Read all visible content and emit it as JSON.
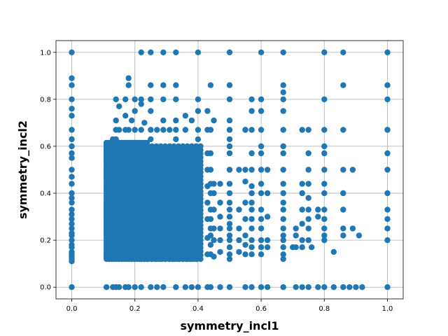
{
  "chart_data": {
    "type": "scatter",
    "title": "",
    "xlabel": "symmetry_incl1",
    "ylabel": "symmetry_incl2",
    "xlim": [
      -0.05,
      1.05
    ],
    "ylim": [
      -0.05,
      1.05
    ],
    "xticks": [
      0.0,
      0.2,
      0.4,
      0.6,
      0.8,
      1.0
    ],
    "yticks": [
      0.0,
      0.2,
      0.4,
      0.6,
      0.8,
      1.0
    ],
    "xtick_labels": [
      "0.0",
      "0.2",
      "0.4",
      "0.6",
      "0.8",
      "1.0"
    ],
    "ytick_labels": [
      "0.0",
      "0.2",
      "0.4",
      "0.6",
      "0.8",
      "1.0"
    ],
    "grid": true,
    "marker_color": "#1f77b4",
    "series": [
      {
        "points": [
          [
            0.0,
            0.0
          ],
          [
            0.0,
            1.0
          ],
          [
            0.0,
            0.89
          ],
          [
            0.0,
            0.86
          ],
          [
            0.0,
            0.8
          ],
          [
            0.0,
            0.76
          ],
          [
            0.0,
            0.73
          ],
          [
            0.0,
            0.67
          ],
          [
            0.0,
            0.63
          ],
          [
            0.0,
            0.6
          ],
          [
            0.0,
            0.57
          ],
          [
            0.0,
            0.55
          ],
          [
            0.0,
            0.5
          ],
          [
            0.0,
            0.47
          ],
          [
            0.0,
            0.44
          ],
          [
            0.0,
            0.4
          ],
          [
            0.0,
            0.38
          ],
          [
            0.0,
            0.36
          ],
          [
            0.0,
            0.33
          ],
          [
            0.0,
            0.31
          ],
          [
            0.0,
            0.29
          ],
          [
            0.0,
            0.27
          ],
          [
            0.0,
            0.25
          ],
          [
            0.0,
            0.23
          ],
          [
            0.0,
            0.22
          ],
          [
            0.0,
            0.2
          ],
          [
            0.0,
            0.18
          ],
          [
            0.0,
            0.17
          ],
          [
            0.0,
            0.15
          ],
          [
            0.0,
            0.14
          ],
          [
            0.0,
            0.13
          ],
          [
            0.0,
            0.12
          ],
          [
            0.0,
            0.11
          ],
          [
            1.0,
            1.0
          ],
          [
            1.0,
            0.86
          ],
          [
            1.0,
            0.8
          ],
          [
            1.0,
            0.67
          ],
          [
            1.0,
            0.57
          ],
          [
            1.0,
            0.5
          ],
          [
            1.0,
            0.4
          ],
          [
            1.0,
            0.33
          ],
          [
            1.0,
            0.29
          ],
          [
            1.0,
            0.25
          ],
          [
            1.0,
            0.2
          ],
          [
            1.0,
            0.0
          ],
          [
            0.22,
            1.0
          ],
          [
            0.25,
            1.0
          ],
          [
            0.29,
            1.0
          ],
          [
            0.33,
            1.0
          ],
          [
            0.4,
            1.0
          ],
          [
            0.5,
            1.0
          ],
          [
            0.6,
            1.0
          ],
          [
            0.67,
            1.0
          ],
          [
            0.8,
            1.0
          ],
          [
            0.86,
            1.0
          ],
          [
            0.11,
            0.0
          ],
          [
            0.13,
            0.0
          ],
          [
            0.14,
            0.0
          ],
          [
            0.15,
            0.0
          ],
          [
            0.17,
            0.0
          ],
          [
            0.18,
            0.0
          ],
          [
            0.2,
            0.0
          ],
          [
            0.22,
            0.0
          ],
          [
            0.25,
            0.0
          ],
          [
            0.27,
            0.0
          ],
          [
            0.29,
            0.0
          ],
          [
            0.33,
            0.0
          ],
          [
            0.36,
            0.0
          ],
          [
            0.38,
            0.0
          ],
          [
            0.4,
            0.0
          ],
          [
            0.43,
            0.0
          ],
          [
            0.44,
            0.0
          ],
          [
            0.47,
            0.0
          ],
          [
            0.5,
            0.0
          ],
          [
            0.55,
            0.0
          ],
          [
            0.57,
            0.0
          ],
          [
            0.6,
            0.0
          ],
          [
            0.62,
            0.0
          ],
          [
            0.67,
            0.0
          ],
          [
            0.71,
            0.0
          ],
          [
            0.73,
            0.0
          ],
          [
            0.75,
            0.0
          ],
          [
            0.78,
            0.0
          ],
          [
            0.8,
            0.0
          ],
          [
            0.83,
            0.0
          ],
          [
            0.86,
            0.0
          ],
          [
            0.88,
            0.0
          ],
          [
            0.9,
            0.0
          ],
          [
            0.92,
            0.0
          ],
          [
            0.14,
            0.8
          ],
          [
            0.17,
            0.8
          ],
          [
            0.2,
            0.8
          ],
          [
            0.22,
            0.8
          ],
          [
            0.25,
            0.8
          ],
          [
            0.29,
            0.8
          ],
          [
            0.33,
            0.8
          ],
          [
            0.4,
            0.8
          ],
          [
            0.5,
            0.8
          ],
          [
            0.57,
            0.8
          ],
          [
            0.6,
            0.8
          ],
          [
            0.67,
            0.8
          ],
          [
            0.8,
            0.8
          ],
          [
            0.18,
            0.89
          ],
          [
            0.18,
            0.86
          ],
          [
            0.25,
            0.86
          ],
          [
            0.29,
            0.86
          ],
          [
            0.33,
            0.86
          ],
          [
            0.44,
            0.86
          ],
          [
            0.5,
            0.86
          ],
          [
            0.67,
            0.86
          ],
          [
            0.86,
            0.86
          ],
          [
            0.67,
            0.83
          ],
          [
            0.15,
            0.77
          ],
          [
            0.2,
            0.75
          ],
          [
            0.22,
            0.78
          ],
          [
            0.25,
            0.75
          ],
          [
            0.36,
            0.73
          ],
          [
            0.4,
            0.75
          ],
          [
            0.43,
            0.75
          ],
          [
            0.57,
            0.75
          ],
          [
            0.5,
            0.71
          ],
          [
            0.6,
            0.75
          ],
          [
            0.67,
            0.75
          ],
          [
            0.17,
            0.73
          ],
          [
            0.14,
            0.71
          ],
          [
            0.19,
            0.71
          ],
          [
            0.23,
            0.7
          ],
          [
            0.29,
            0.71
          ],
          [
            0.33,
            0.71
          ],
          [
            0.38,
            0.71
          ],
          [
            0.45,
            0.71
          ],
          [
            0.14,
            0.67
          ],
          [
            0.15,
            0.67
          ],
          [
            0.17,
            0.67
          ],
          [
            0.18,
            0.67
          ],
          [
            0.2,
            0.67
          ],
          [
            0.22,
            0.67
          ],
          [
            0.25,
            0.67
          ],
          [
            0.27,
            0.67
          ],
          [
            0.29,
            0.67
          ],
          [
            0.31,
            0.67
          ],
          [
            0.33,
            0.67
          ],
          [
            0.36,
            0.67
          ],
          [
            0.4,
            0.67
          ],
          [
            0.43,
            0.67
          ],
          [
            0.44,
            0.67
          ],
          [
            0.5,
            0.67
          ],
          [
            0.55,
            0.67
          ],
          [
            0.57,
            0.67
          ],
          [
            0.6,
            0.67
          ],
          [
            0.67,
            0.67
          ],
          [
            0.73,
            0.67
          ],
          [
            0.75,
            0.67
          ],
          [
            0.8,
            0.67
          ],
          [
            0.86,
            0.67
          ],
          [
            1.0,
            0.67
          ],
          [
            0.13,
            0.63
          ],
          [
            0.14,
            0.63
          ],
          [
            0.25,
            0.63
          ],
          [
            0.33,
            0.63
          ],
          [
            0.4,
            0.63
          ],
          [
            0.5,
            0.63
          ],
          [
            0.6,
            0.6
          ],
          [
            0.67,
            0.6
          ],
          [
            0.8,
            0.6
          ],
          [
            0.12,
            0.5
          ],
          [
            0.12,
            0.45
          ],
          [
            0.12,
            0.4
          ],
          [
            0.12,
            0.36
          ],
          [
            0.12,
            0.33
          ],
          [
            0.12,
            0.3
          ],
          [
            0.12,
            0.25
          ],
          [
            0.12,
            0.2
          ],
          [
            0.12,
            0.17
          ],
          [
            0.12,
            0.13
          ],
          [
            0.11,
            0.36
          ],
          [
            0.67,
            0.57
          ],
          [
            0.67,
            0.5
          ],
          [
            0.67,
            0.44
          ],
          [
            0.67,
            0.4
          ],
          [
            0.67,
            0.36
          ],
          [
            0.67,
            0.33
          ],
          [
            0.67,
            0.29
          ],
          [
            0.67,
            0.25
          ],
          [
            0.67,
            0.22
          ],
          [
            0.67,
            0.2
          ],
          [
            0.67,
            0.17
          ],
          [
            0.67,
            0.14
          ],
          [
            0.67,
            0.12
          ],
          [
            0.6,
            0.57
          ],
          [
            0.6,
            0.5
          ],
          [
            0.6,
            0.44
          ],
          [
            0.6,
            0.4
          ],
          [
            0.6,
            0.33
          ],
          [
            0.6,
            0.29
          ],
          [
            0.6,
            0.25
          ],
          [
            0.6,
            0.2
          ],
          [
            0.6,
            0.17
          ],
          [
            0.6,
            0.14
          ],
          [
            0.62,
            0.5
          ],
          [
            0.62,
            0.4
          ],
          [
            0.62,
            0.3
          ],
          [
            0.62,
            0.2
          ],
          [
            0.62,
            0.17
          ],
          [
            0.57,
            0.57
          ],
          [
            0.57,
            0.5
          ],
          [
            0.57,
            0.43
          ],
          [
            0.57,
            0.4
          ],
          [
            0.57,
            0.36
          ],
          [
            0.57,
            0.33
          ],
          [
            0.57,
            0.29
          ],
          [
            0.57,
            0.25
          ],
          [
            0.57,
            0.2
          ],
          [
            0.57,
            0.17
          ],
          [
            0.57,
            0.14
          ],
          [
            0.55,
            0.67
          ],
          [
            0.55,
            0.5
          ],
          [
            0.55,
            0.45
          ],
          [
            0.55,
            0.36
          ],
          [
            0.55,
            0.29
          ],
          [
            0.55,
            0.22
          ],
          [
            0.55,
            0.18
          ],
          [
            0.55,
            0.14
          ],
          [
            0.53,
            0.5
          ],
          [
            0.53,
            0.33
          ],
          [
            0.53,
            0.25
          ],
          [
            0.53,
            0.2
          ],
          [
            0.53,
            0.15
          ],
          [
            0.5,
            0.6
          ],
          [
            0.5,
            0.57
          ],
          [
            0.5,
            0.5
          ],
          [
            0.5,
            0.44
          ],
          [
            0.5,
            0.4
          ],
          [
            0.5,
            0.36
          ],
          [
            0.5,
            0.33
          ],
          [
            0.5,
            0.3
          ],
          [
            0.5,
            0.27
          ],
          [
            0.5,
            0.25
          ],
          [
            0.5,
            0.22
          ],
          [
            0.5,
            0.2
          ],
          [
            0.5,
            0.17
          ],
          [
            0.5,
            0.14
          ],
          [
            0.5,
            0.12
          ],
          [
            0.47,
            0.44
          ],
          [
            0.47,
            0.36
          ],
          [
            0.47,
            0.3
          ],
          [
            0.47,
            0.25
          ],
          [
            0.47,
            0.2
          ],
          [
            0.47,
            0.15
          ],
          [
            0.45,
            0.44
          ],
          [
            0.45,
            0.4
          ],
          [
            0.45,
            0.33
          ],
          [
            0.45,
            0.25
          ],
          [
            0.45,
            0.2
          ],
          [
            0.45,
            0.13
          ],
          [
            0.44,
            0.57
          ],
          [
            0.44,
            0.5
          ],
          [
            0.44,
            0.44
          ],
          [
            0.44,
            0.4
          ],
          [
            0.44,
            0.33
          ],
          [
            0.44,
            0.29
          ],
          [
            0.44,
            0.25
          ],
          [
            0.44,
            0.22
          ],
          [
            0.44,
            0.18
          ],
          [
            0.44,
            0.14
          ],
          [
            0.43,
            0.57
          ],
          [
            0.43,
            0.5
          ],
          [
            0.43,
            0.43
          ],
          [
            0.43,
            0.36
          ],
          [
            0.43,
            0.29
          ],
          [
            0.43,
            0.21
          ],
          [
            0.43,
            0.14
          ],
          [
            0.73,
            0.44
          ],
          [
            0.73,
            0.4
          ],
          [
            0.73,
            0.33
          ],
          [
            0.73,
            0.27
          ],
          [
            0.73,
            0.2
          ],
          [
            0.73,
            0.17
          ],
          [
            0.75,
            0.57
          ],
          [
            0.75,
            0.5
          ],
          [
            0.75,
            0.44
          ],
          [
            0.75,
            0.38
          ],
          [
            0.75,
            0.33
          ],
          [
            0.75,
            0.29
          ],
          [
            0.75,
            0.25
          ],
          [
            0.75,
            0.2
          ],
          [
            0.78,
            0.33
          ],
          [
            0.78,
            0.3
          ],
          [
            0.71,
            0.22
          ],
          [
            0.71,
            0.25
          ],
          [
            0.71,
            0.17
          ],
          [
            0.8,
            0.57
          ],
          [
            0.8,
            0.5
          ],
          [
            0.8,
            0.44
          ],
          [
            0.8,
            0.4
          ],
          [
            0.8,
            0.33
          ],
          [
            0.8,
            0.29
          ],
          [
            0.8,
            0.25
          ],
          [
            0.8,
            0.22
          ],
          [
            0.8,
            0.2
          ],
          [
            0.86,
            0.5
          ],
          [
            0.86,
            0.4
          ],
          [
            0.86,
            0.33
          ],
          [
            0.86,
            0.25
          ],
          [
            0.86,
            0.22
          ],
          [
            0.89,
            0.5
          ],
          [
            0.89,
            0.25
          ],
          [
            0.91,
            0.22
          ],
          [
            0.83,
            0.15
          ],
          [
            0.7,
            0.17
          ],
          [
            0.76,
            0.17
          ]
        ]
      }
    ],
    "dense_regions": [
      {
        "x": [
          0.11,
          0.24
        ],
        "y": [
          0.12,
          0.62
        ],
        "step_x": 0.008,
        "step_y": 0.009
      },
      {
        "x": [
          0.24,
          0.42
        ],
        "y": [
          0.12,
          0.6
        ],
        "step_x": 0.014,
        "step_y": 0.016
      },
      {
        "x": [
          0.22,
          0.4
        ],
        "y": [
          0.12,
          0.48
        ],
        "step_x": 0.011,
        "step_y": 0.013
      }
    ]
  }
}
